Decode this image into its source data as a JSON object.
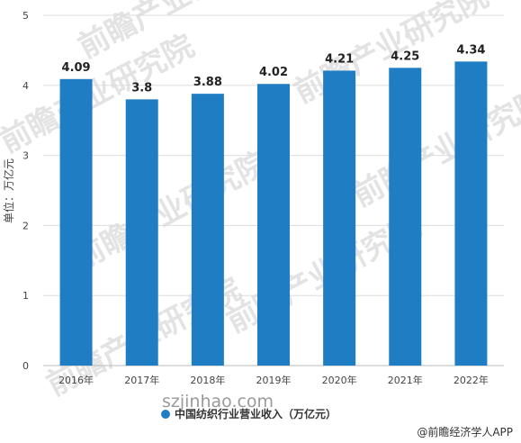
{
  "chart_data": {
    "type": "bar",
    "categories": [
      "2016年",
      "2017年",
      "2018年",
      "2019年",
      "2020年",
      "2021年",
      "2022年"
    ],
    "series": [
      {
        "name": "中国纺织行业营业收入（万亿元）",
        "values": [
          4.09,
          3.8,
          3.88,
          4.02,
          4.21,
          4.25,
          4.34
        ],
        "color": "#1f7dc4"
      }
    ],
    "data_labels": [
      "4.09",
      "3.8",
      "3.88",
      "4.02",
      "4.21",
      "4.25",
      "4.34"
    ],
    "ylabel": "单位：万亿元",
    "yticks": [
      0,
      1,
      2,
      3,
      4,
      5
    ],
    "ylim": [
      0,
      5
    ],
    "grid": true,
    "legend_position": "bottom-center"
  },
  "credit": "@前瞻经济学人APP",
  "watermark": "前瞻产业研究院",
  "site_watermark": "szjinhao.com"
}
